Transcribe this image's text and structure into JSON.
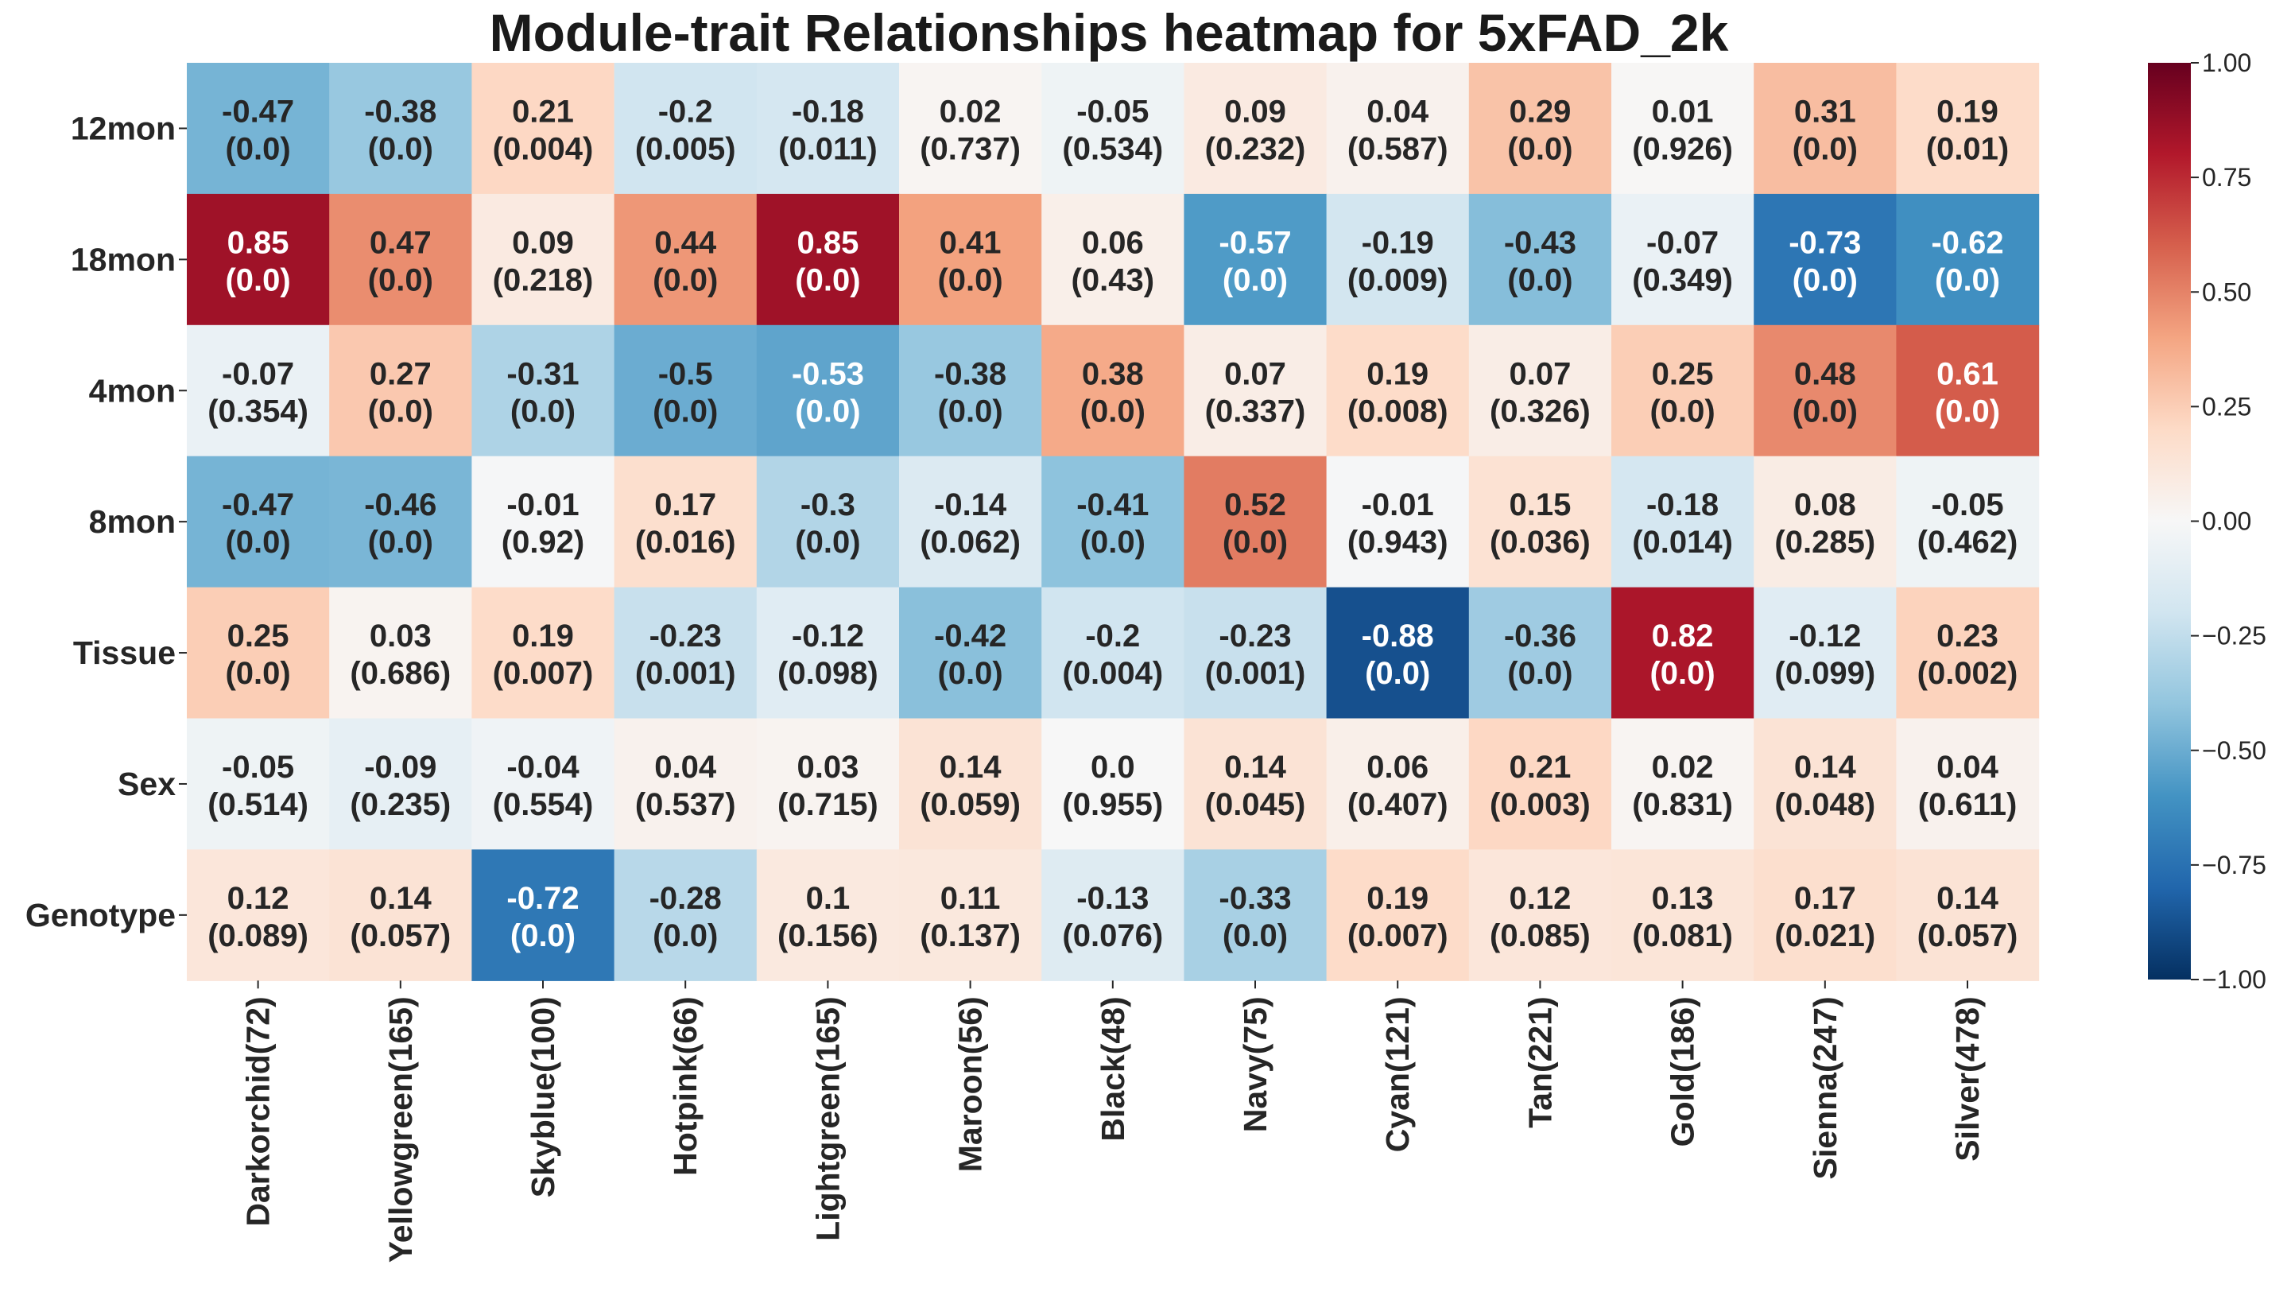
{
  "chart_data": {
    "type": "heatmap",
    "title": "Module-trait Relationships heatmap for 5xFAD_2k",
    "rows": [
      "12mon",
      "18mon",
      "4mon",
      "8mon",
      "Tissue",
      "Sex",
      "Genotype"
    ],
    "columns": [
      "Darkorchid(72)",
      "Yellowgreen(165)",
      "Skyblue(100)",
      "Hotpink(66)",
      "Lightgreen(165)",
      "Maroon(56)",
      "Black(48)",
      "Navy(75)",
      "Cyan(121)",
      "Tan(221)",
      "Gold(186)",
      "Sienna(247)",
      "Silver(478)"
    ],
    "values": [
      [
        -0.47,
        -0.38,
        0.21,
        -0.2,
        -0.18,
        0.02,
        -0.05,
        0.09,
        0.04,
        0.29,
        0.01,
        0.31,
        0.19
      ],
      [
        0.85,
        0.47,
        0.09,
        0.44,
        0.85,
        0.41,
        0.06,
        -0.57,
        -0.19,
        -0.43,
        -0.07,
        -0.73,
        -0.62
      ],
      [
        -0.07,
        0.27,
        -0.31,
        -0.5,
        -0.53,
        -0.38,
        0.38,
        0.07,
        0.19,
        0.07,
        0.25,
        0.48,
        0.61
      ],
      [
        -0.47,
        -0.46,
        -0.01,
        0.17,
        -0.3,
        -0.14,
        -0.41,
        0.52,
        -0.01,
        0.15,
        -0.18,
        0.08,
        -0.05
      ],
      [
        0.25,
        0.03,
        0.19,
        -0.23,
        -0.12,
        -0.42,
        -0.2,
        -0.23,
        -0.88,
        -0.36,
        0.82,
        -0.12,
        0.23
      ],
      [
        -0.05,
        -0.09,
        -0.04,
        0.04,
        0.03,
        0.14,
        0.0,
        0.14,
        0.06,
        0.21,
        0.02,
        0.14,
        0.04
      ],
      [
        0.12,
        0.14,
        -0.72,
        -0.28,
        0.1,
        0.11,
        -0.13,
        -0.33,
        0.19,
        0.12,
        0.13,
        0.17,
        0.14
      ]
    ],
    "value_labels": [
      [
        "-0.47",
        "-0.38",
        "0.21",
        "-0.2",
        "-0.18",
        "0.02",
        "-0.05",
        "0.09",
        "0.04",
        "0.29",
        "0.01",
        "0.31",
        "0.19"
      ],
      [
        "0.85",
        "0.47",
        "0.09",
        "0.44",
        "0.85",
        "0.41",
        "0.06",
        "-0.57",
        "-0.19",
        "-0.43",
        "-0.07",
        "-0.73",
        "-0.62"
      ],
      [
        "-0.07",
        "0.27",
        "-0.31",
        "-0.5",
        "-0.53",
        "-0.38",
        "0.38",
        "0.07",
        "0.19",
        "0.07",
        "0.25",
        "0.48",
        "0.61"
      ],
      [
        "-0.47",
        "-0.46",
        "-0.01",
        "0.17",
        "-0.3",
        "-0.14",
        "-0.41",
        "0.52",
        "-0.01",
        "0.15",
        "-0.18",
        "0.08",
        "-0.05"
      ],
      [
        "0.25",
        "0.03",
        "0.19",
        "-0.23",
        "-0.12",
        "-0.42",
        "-0.2",
        "-0.23",
        "-0.88",
        "-0.36",
        "0.82",
        "-0.12",
        "0.23"
      ],
      [
        "-0.05",
        "-0.09",
        "-0.04",
        "0.04",
        "0.03",
        "0.14",
        "0.0",
        "0.14",
        "0.06",
        "0.21",
        "0.02",
        "0.14",
        "0.04"
      ],
      [
        "0.12",
        "0.14",
        "-0.72",
        "-0.28",
        "0.1",
        "0.11",
        "-0.13",
        "-0.33",
        "0.19",
        "0.12",
        "0.13",
        "0.17",
        "0.14"
      ]
    ],
    "pvalue_labels": [
      [
        "(0.0)",
        "(0.0)",
        "(0.004)",
        "(0.005)",
        "(0.011)",
        "(0.737)",
        "(0.534)",
        "(0.232)",
        "(0.587)",
        "(0.0)",
        "(0.926)",
        "(0.0)",
        "(0.01)"
      ],
      [
        "(0.0)",
        "(0.0)",
        "(0.218)",
        "(0.0)",
        "(0.0)",
        "(0.0)",
        "(0.43)",
        "(0.0)",
        "(0.009)",
        "(0.0)",
        "(0.349)",
        "(0.0)",
        "(0.0)"
      ],
      [
        "(0.354)",
        "(0.0)",
        "(0.0)",
        "(0.0)",
        "(0.0)",
        "(0.0)",
        "(0.0)",
        "(0.337)",
        "(0.008)",
        "(0.326)",
        "(0.0)",
        "(0.0)",
        "(0.0)"
      ],
      [
        "(0.0)",
        "(0.0)",
        "(0.92)",
        "(0.016)",
        "(0.0)",
        "(0.062)",
        "(0.0)",
        "(0.0)",
        "(0.943)",
        "(0.036)",
        "(0.014)",
        "(0.285)",
        "(0.462)"
      ],
      [
        "(0.0)",
        "(0.686)",
        "(0.007)",
        "(0.001)",
        "(0.098)",
        "(0.0)",
        "(0.004)",
        "(0.001)",
        "(0.0)",
        "(0.0)",
        "(0.0)",
        "(0.099)",
        "(0.002)"
      ],
      [
        "(0.514)",
        "(0.235)",
        "(0.554)",
        "(0.537)",
        "(0.715)",
        "(0.059)",
        "(0.955)",
        "(0.045)",
        "(0.407)",
        "(0.003)",
        "(0.831)",
        "(0.048)",
        "(0.611)"
      ],
      [
        "(0.089)",
        "(0.057)",
        "(0.0)",
        "(0.0)",
        "(0.156)",
        "(0.137)",
        "(0.076)",
        "(0.0)",
        "(0.007)",
        "(0.085)",
        "(0.081)",
        "(0.021)",
        "(0.057)"
      ]
    ],
    "colorbar": {
      "vmin": -1.0,
      "vmax": 1.0,
      "tick_values": [
        1.0,
        0.75,
        0.5,
        0.25,
        0.0,
        -0.25,
        -0.5,
        -0.75,
        -1.0
      ],
      "tick_labels": [
        "1.00",
        "0.75",
        "0.50",
        "0.25",
        "0.00",
        "−0.25",
        "−0.50",
        "−0.75",
        "−1.00"
      ],
      "colormap": "RdBu_r",
      "color_stops": [
        "#053061",
        "#2166ac",
        "#4393c3",
        "#92c5de",
        "#d1e5f0",
        "#f7f7f7",
        "#fddbc7",
        "#f4a582",
        "#d6604d",
        "#b2182b",
        "#67001f"
      ]
    }
  }
}
